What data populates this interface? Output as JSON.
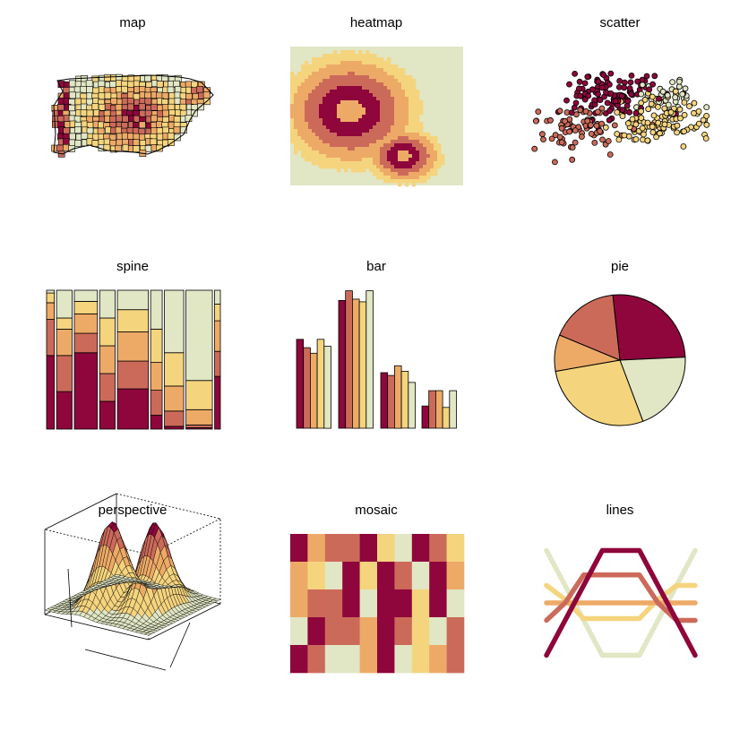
{
  "palette": {
    "c1": "#8E063B",
    "c2": "#CC6A5A",
    "c3": "#EDAA67",
    "c4": "#F5D47E",
    "c5": "#E1E6C4",
    "border": "#000000",
    "background": "#FFFFFF"
  },
  "chart_data": [
    {
      "type": "map",
      "title": "map",
      "description_of_fill": "choropleth of counties using 5-color sequential palette, darkest values concentrated in center-east cluster"
    },
    {
      "type": "heatmap",
      "title": "heatmap",
      "levels": 5,
      "note": "concentric contour-like bands, darkest ring around center-left with a hollow center"
    },
    {
      "type": "scatter",
      "title": "scatter",
      "clusters": [
        {
          "name": "",
          "color_index": 1,
          "center": [
            -0.2,
            0.55
          ]
        },
        {
          "name": "",
          "color_index": 2,
          "center": [
            -1.0,
            -0.4
          ]
        },
        {
          "name": "",
          "color_index": 4,
          "center": [
            0.9,
            -0.2
          ]
        },
        {
          "name": "",
          "color_index": 5,
          "center": [
            1.1,
            0.6
          ]
        }
      ]
    },
    {
      "type": "spine",
      "title": "spine",
      "columns": [
        {
          "width": 0.047,
          "shares": [
            0.53,
            0.26,
            0.12,
            0.07,
            0.02
          ]
        },
        {
          "width": 0.094,
          "shares": [
            0.27,
            0.26,
            0.19,
            0.08,
            0.2
          ]
        },
        {
          "width": 0.14,
          "shares": [
            0.55,
            0.14,
            0.14,
            0.09,
            0.08
          ]
        },
        {
          "width": 0.094,
          "shares": [
            0.2,
            0.2,
            0.2,
            0.2,
            0.2
          ]
        },
        {
          "width": 0.188,
          "shares": [
            0.29,
            0.2,
            0.21,
            0.16,
            0.14
          ]
        },
        {
          "width": 0.07,
          "shares": [
            0.1,
            0.18,
            0.2,
            0.24,
            0.28
          ]
        },
        {
          "width": 0.117,
          "shares": [
            0.02,
            0.11,
            0.18,
            0.24,
            0.45
          ]
        },
        {
          "width": 0.16,
          "shares": [
            0.01,
            0.02,
            0.11,
            0.21,
            0.65
          ]
        },
        {
          "width": 0.035,
          "shares": [
            0.38,
            0.18,
            0.22,
            0.12,
            0.1
          ]
        }
      ]
    },
    {
      "type": "bar",
      "title": "bar",
      "categories": [
        "",
        "",
        "",
        ""
      ],
      "series_values": [
        [
          64,
          58,
          54,
          64,
          59
        ],
        [
          92,
          99,
          93,
          91,
          99
        ],
        [
          40,
          38,
          45,
          41,
          33
        ],
        [
          16,
          27,
          27,
          15,
          27
        ]
      ],
      "ylim": [
        0,
        100
      ]
    },
    {
      "type": "pie",
      "title": "pie",
      "slices": [
        {
          "value": 0.26,
          "color_index": 1
        },
        {
          "value": 0.2,
          "color_index": 5
        },
        {
          "value": 0.28,
          "color_index": 4
        },
        {
          "value": 0.09,
          "color_index": 3
        },
        {
          "value": 0.17,
          "color_index": 2
        }
      ]
    },
    {
      "type": "perspective",
      "title": "perspective",
      "note": "3D surface with two peaks, colored by height"
    },
    {
      "type": "mosaic",
      "title": "mosaic",
      "grid": [
        [
          1,
          3,
          2,
          2,
          1,
          4,
          5,
          1,
          2,
          4
        ],
        [
          3,
          4,
          5,
          1,
          4,
          1,
          2,
          5,
          1,
          3
        ],
        [
          3,
          2,
          2,
          1,
          5,
          1,
          1,
          4,
          1,
          5
        ],
        [
          5,
          1,
          2,
          2,
          3,
          1,
          2,
          4,
          5,
          2
        ],
        [
          1,
          2,
          5,
          5,
          3,
          1,
          5,
          4,
          3,
          2
        ]
      ]
    },
    {
      "type": "line",
      "title": "lines",
      "x": [
        0,
        1,
        2,
        3,
        4,
        5,
        6,
        7,
        8
      ],
      "series": [
        {
          "color_index": 1,
          "values": [
            -3,
            -1,
            1,
            3,
            3,
            3,
            1,
            -1,
            -3
          ]
        },
        {
          "color_index": 2,
          "values": [
            -1,
            0,
            1.6,
            1.6,
            1.6,
            1.6,
            0,
            -1,
            -1
          ]
        },
        {
          "color_index": 3,
          "values": [
            0,
            0,
            0,
            0,
            0,
            0,
            0,
            0,
            0
          ]
        },
        {
          "color_index": 4,
          "values": [
            1,
            0.2,
            -0.9,
            -0.9,
            -0.9,
            -0.9,
            0.2,
            1,
            1
          ]
        },
        {
          "color_index": 5,
          "values": [
            3,
            1,
            -1,
            -3,
            -3,
            -3,
            -1,
            1,
            3
          ]
        }
      ]
    }
  ]
}
